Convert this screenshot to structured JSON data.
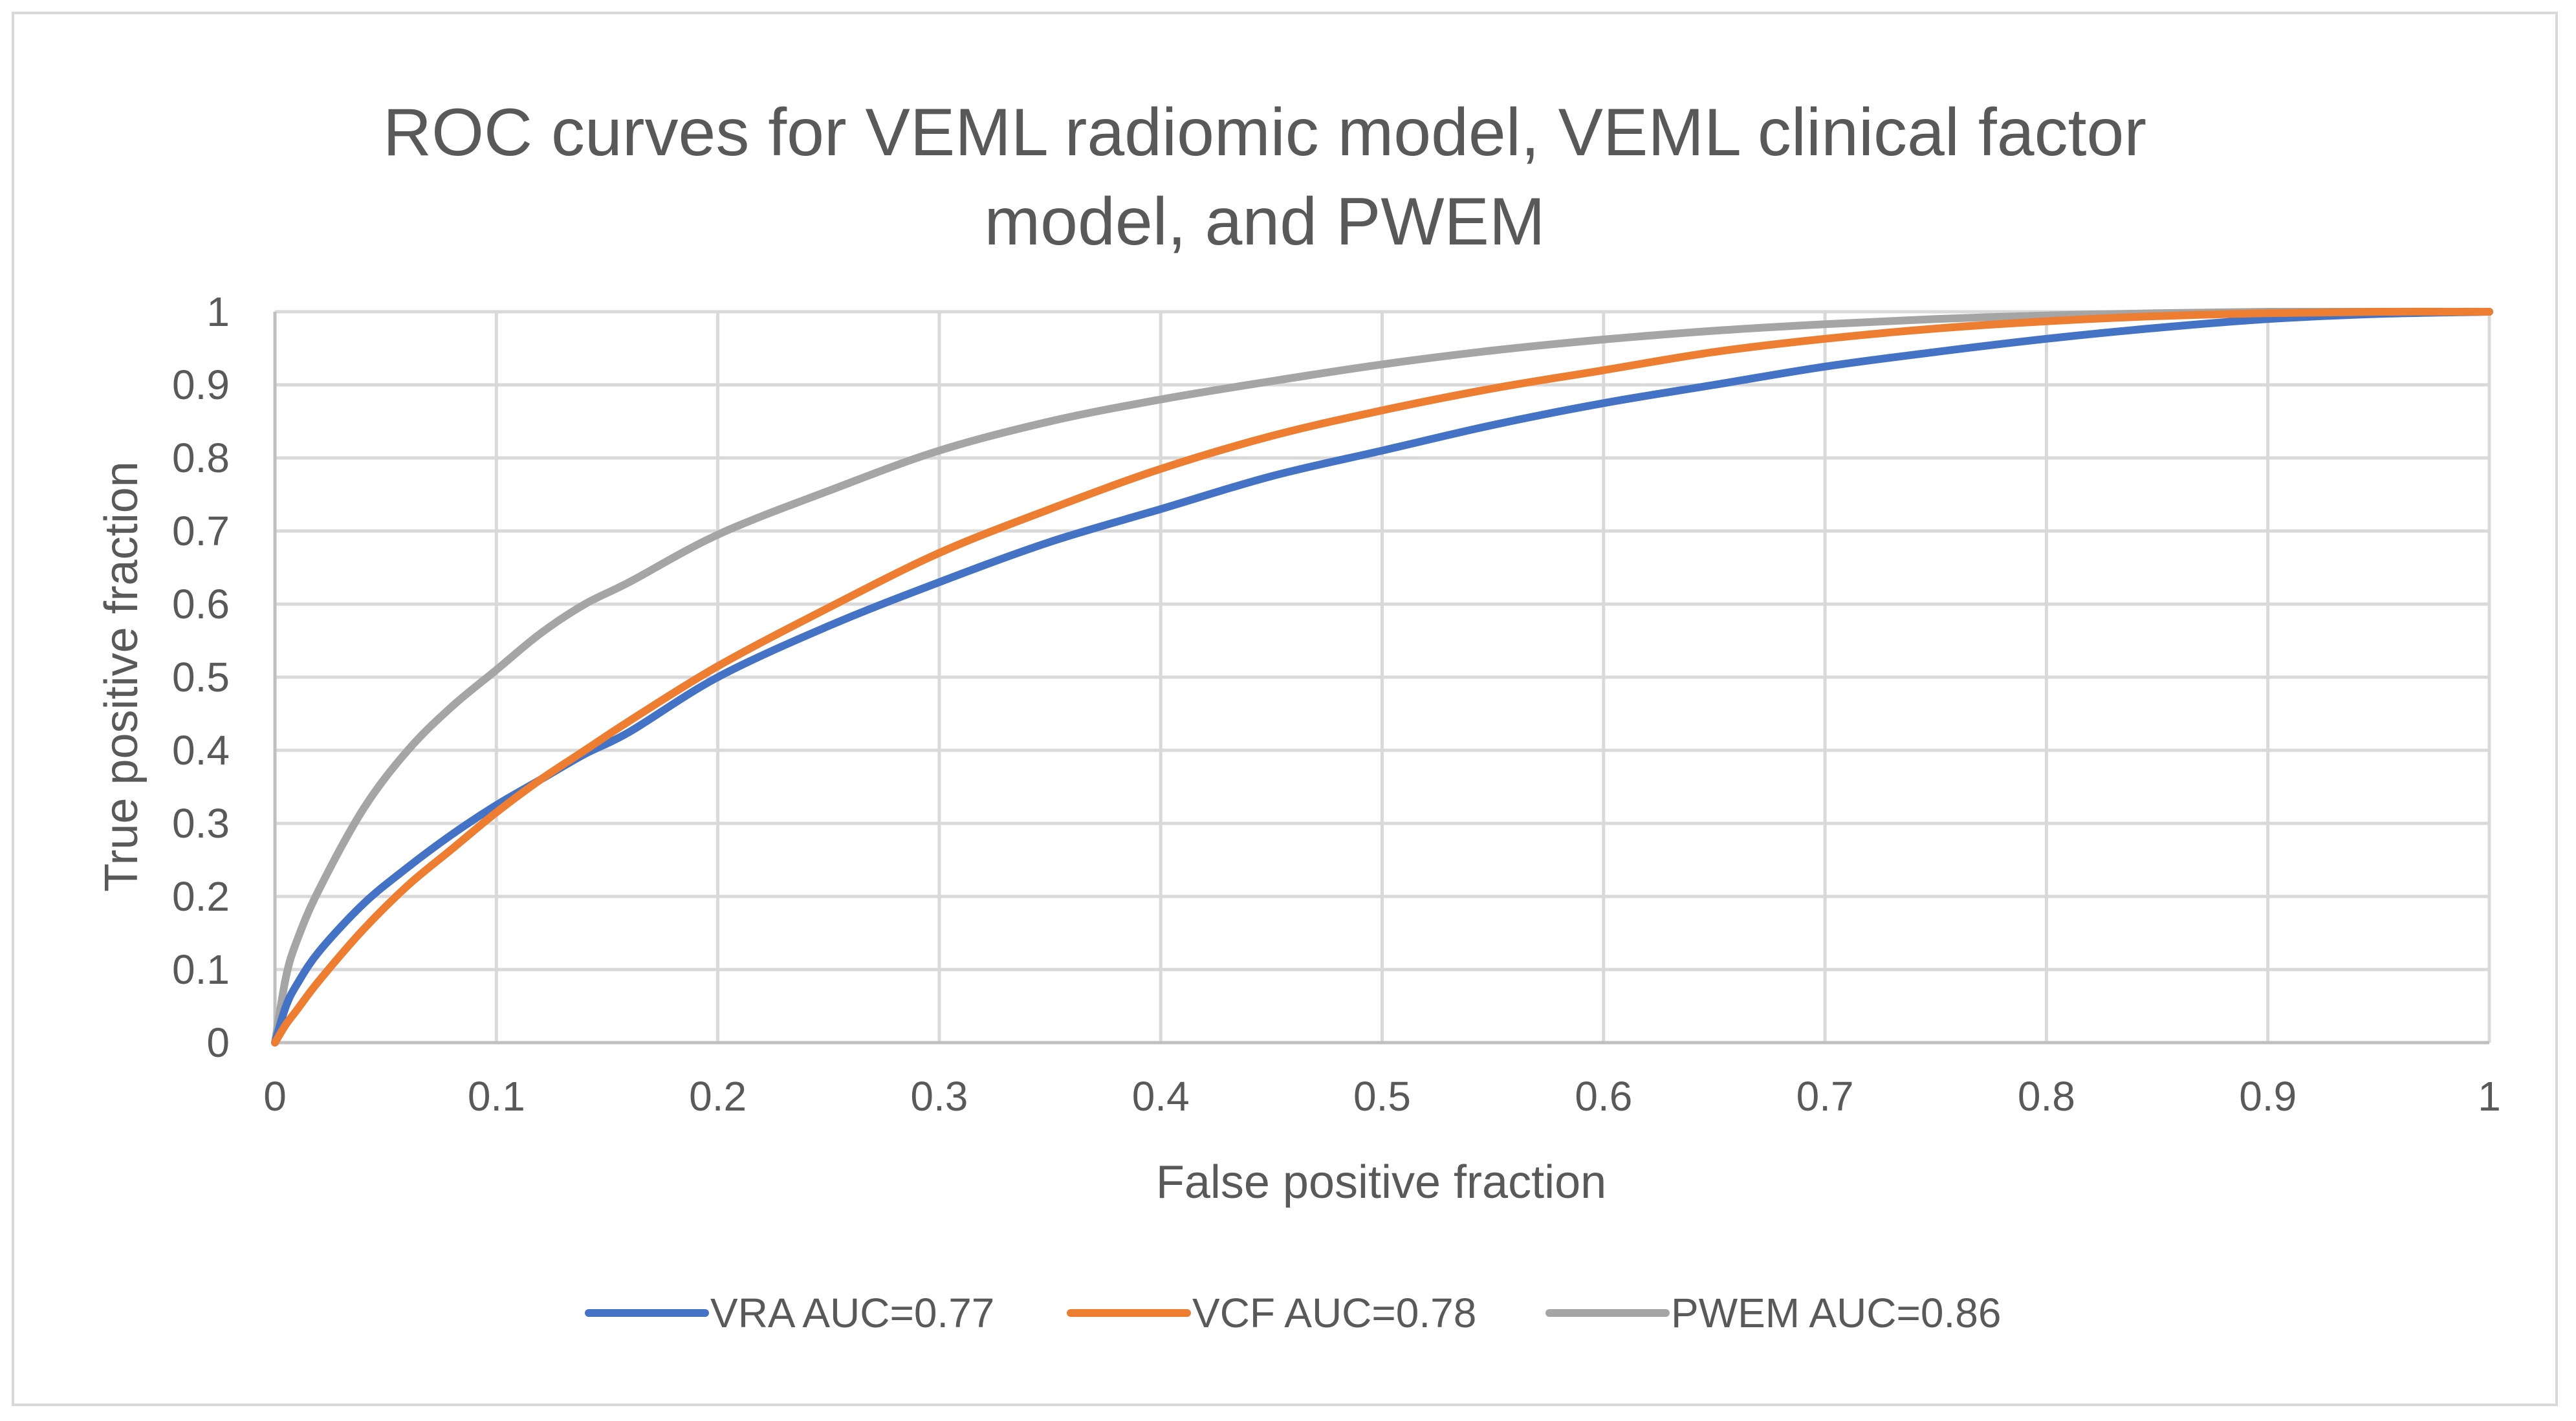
{
  "chart_data": {
    "type": "line",
    "title_lines": [
      "ROC curves for VEML radiomic model, VEML clinical factor",
      "model, and PWEM"
    ],
    "xlabel": "False positive fraction",
    "ylabel": "True positive fraction",
    "xlim": [
      0,
      1
    ],
    "ylim": [
      0,
      1
    ],
    "x_ticks": [
      "0",
      "0.1",
      "0.2",
      "0.3",
      "0.4",
      "0.5",
      "0.6",
      "0.7",
      "0.8",
      "0.9",
      "1"
    ],
    "y_ticks": [
      "0",
      "0.1",
      "0.2",
      "0.3",
      "0.4",
      "0.5",
      "0.6",
      "0.7",
      "0.8",
      "0.9",
      "1"
    ],
    "grid": true,
    "legend_position": "bottom",
    "series": [
      {
        "name": "VRA AUC=0.77",
        "color": "#4472c4",
        "x": [
          0,
          0.005,
          0.01,
          0.02,
          0.04,
          0.06,
          0.08,
          0.1,
          0.12,
          0.14,
          0.16,
          0.2,
          0.25,
          0.3,
          0.35,
          0.4,
          0.45,
          0.5,
          0.55,
          0.6,
          0.65,
          0.7,
          0.75,
          0.8,
          0.85,
          0.9,
          0.95,
          1
        ],
        "y": [
          0,
          0.05,
          0.08,
          0.125,
          0.19,
          0.24,
          0.285,
          0.325,
          0.36,
          0.395,
          0.425,
          0.5,
          0.57,
          0.63,
          0.685,
          0.73,
          0.775,
          0.81,
          0.845,
          0.875,
          0.9,
          0.925,
          0.945,
          0.963,
          0.978,
          0.99,
          0.997,
          1
        ]
      },
      {
        "name": "VCF AUC=0.78",
        "color": "#ed7d31",
        "x": [
          0,
          0.005,
          0.01,
          0.02,
          0.04,
          0.06,
          0.08,
          0.1,
          0.12,
          0.14,
          0.16,
          0.2,
          0.25,
          0.3,
          0.35,
          0.4,
          0.45,
          0.5,
          0.55,
          0.6,
          0.65,
          0.7,
          0.75,
          0.8,
          0.85,
          0.9,
          0.95,
          1
        ],
        "y": [
          0,
          0.025,
          0.045,
          0.085,
          0.155,
          0.215,
          0.265,
          0.315,
          0.36,
          0.4,
          0.44,
          0.515,
          0.595,
          0.67,
          0.73,
          0.785,
          0.83,
          0.865,
          0.895,
          0.92,
          0.945,
          0.963,
          0.977,
          0.987,
          0.994,
          0.998,
          1,
          1
        ]
      },
      {
        "name": "PWEM AUC=0.86",
        "color": "#a5a5a5",
        "x": [
          0,
          0.005,
          0.01,
          0.02,
          0.04,
          0.06,
          0.08,
          0.1,
          0.12,
          0.14,
          0.16,
          0.2,
          0.25,
          0.3,
          0.35,
          0.4,
          0.45,
          0.5,
          0.55,
          0.6,
          0.65,
          0.7,
          0.75,
          0.8,
          0.85,
          0.9,
          0.95,
          1
        ],
        "y": [
          0,
          0.09,
          0.14,
          0.21,
          0.32,
          0.4,
          0.46,
          0.51,
          0.56,
          0.6,
          0.63,
          0.695,
          0.755,
          0.81,
          0.85,
          0.88,
          0.905,
          0.928,
          0.947,
          0.962,
          0.974,
          0.983,
          0.99,
          0.995,
          0.998,
          1,
          1,
          1
        ]
      }
    ]
  }
}
